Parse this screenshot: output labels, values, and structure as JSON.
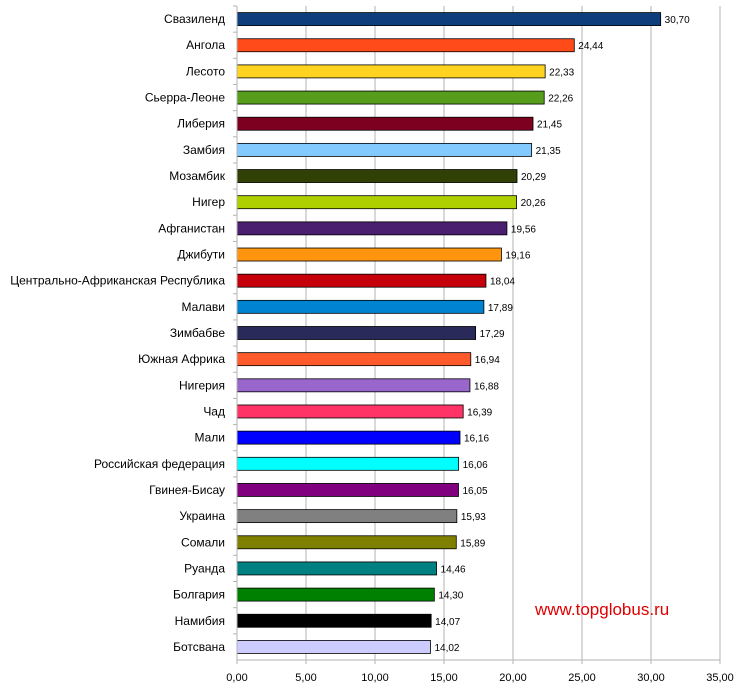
{
  "watermark": "www.topglobus.ru",
  "chart_data": {
    "type": "bar",
    "orientation": "horizontal",
    "title": "",
    "xlabel": "",
    "ylabel": "",
    "xlim": [
      0,
      35
    ],
    "x_ticks": [
      "0,00",
      "5,00",
      "10,00",
      "15,00",
      "20,00",
      "25,00",
      "30,00",
      "35,00"
    ],
    "grid": true,
    "legend": "none",
    "categories": [
      "Свазиленд",
      "Ангола",
      "Лесото",
      "Сьерра-Леоне",
      "Либерия",
      "Замбия",
      "Мозамбик",
      "Нигер",
      "Афганистан",
      "Джибути",
      "Центрально-Африканская Республика",
      "Малави",
      "Зимбабве",
      "Южная Африка",
      "Нигерия",
      "Чад",
      "Мали",
      "Российская федерация",
      "Гвинея-Бисау",
      "Украина",
      "Сомали",
      "Руанда",
      "Болгария",
      "Намибия",
      "Ботсвана"
    ],
    "values": [
      30.7,
      24.44,
      22.33,
      22.26,
      21.45,
      21.35,
      20.29,
      20.26,
      19.56,
      19.16,
      18.04,
      17.89,
      17.29,
      16.94,
      16.88,
      16.39,
      16.16,
      16.06,
      16.05,
      15.93,
      15.89,
      14.46,
      14.3,
      14.07,
      14.02
    ],
    "value_labels": [
      "30,70",
      "24,44",
      "22,33",
      "22,26",
      "21,45",
      "21,35",
      "20,29",
      "20,26",
      "19,56",
      "19,16",
      "18,04",
      "17,89",
      "17,29",
      "16,94",
      "16,88",
      "16,39",
      "16,16",
      "16,06",
      "16,05",
      "15,93",
      "15,89",
      "14,46",
      "14,30",
      "14,07",
      "14,02"
    ],
    "colors": [
      "#0e3f7c",
      "#ff4a1a",
      "#ffd320",
      "#579d1c",
      "#7e0021",
      "#83caff",
      "#314004",
      "#aecf00",
      "#4b1f6f",
      "#ff950e",
      "#c5000b",
      "#0084d1",
      "#2a2a5a",
      "#ff5a2b",
      "#9966cc",
      "#ff3366",
      "#0000ff",
      "#00ffff",
      "#800080",
      "#808080",
      "#808000",
      "#008080",
      "#008000",
      "#000000",
      "#ccccff"
    ]
  }
}
